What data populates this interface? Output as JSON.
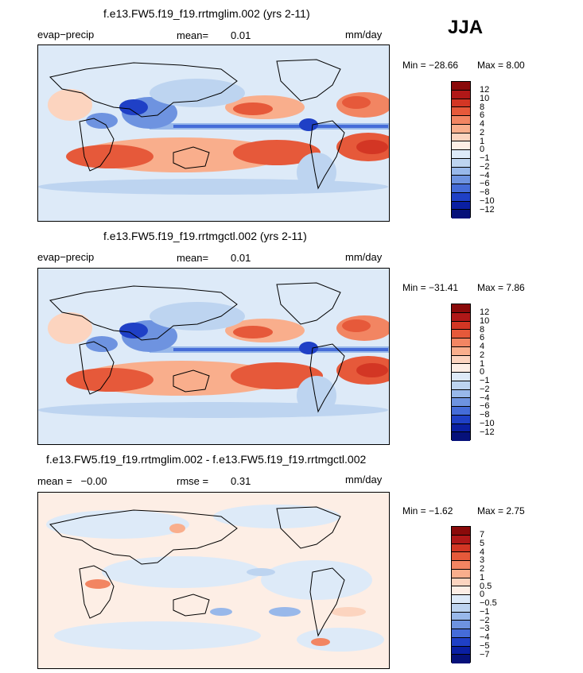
{
  "season": "JJA",
  "panels": [
    {
      "title": "f.e13.FW5.f19_f19.rrtmglim.002 (yrs 2-11)",
      "left": "evap−precip",
      "mid_label": "mean=",
      "mid_value": "0.01",
      "units": "mm/day",
      "minmax": {
        "min_label": "Min = ",
        "min": "−28.66",
        "max_label": "Max = ",
        "max": "8.00"
      },
      "colorbar": [
        "12",
        "10",
        "8",
        "6",
        "4",
        "2",
        "1",
        "0",
        "−1",
        "−2",
        "−4",
        "−6",
        "−8",
        "−10",
        "−12"
      ]
    },
    {
      "title": "f.e13.FW5.f19_f19.rrtmgctl.002 (yrs 2-11)",
      "left": "evap−precip",
      "mid_label": "mean=",
      "mid_value": "0.01",
      "units": "mm/day",
      "minmax": {
        "min_label": "Min = ",
        "min": "−31.41",
        "max_label": "Max = ",
        "max": "7.86"
      },
      "colorbar": [
        "12",
        "10",
        "8",
        "6",
        "4",
        "2",
        "1",
        "0",
        "−1",
        "−2",
        "−4",
        "−6",
        "−8",
        "−10",
        "−12"
      ]
    },
    {
      "title": "f.e13.FW5.f19_f19.rrtmglim.002 - f.e13.FW5.f19_f19.rrtmgctl.002",
      "left": "mean =   −0.00",
      "mid_label": "rmse =",
      "mid_value": "0.31",
      "units": "mm/day",
      "minmax": {
        "min_label": "Min = ",
        "min": "−1.62",
        "max_label": "Max = ",
        "max": "2.75"
      },
      "colorbar": [
        "7",
        "5",
        "4",
        "3",
        "2",
        "1",
        "0.5",
        "0",
        "−0.5",
        "−1",
        "−2",
        "−3",
        "−4",
        "−5",
        "−7"
      ]
    }
  ],
  "colors": {
    "scale": [
      "#8a0a0a",
      "#b01818",
      "#d33624",
      "#e6593a",
      "#f28562",
      "#f9ae8c",
      "#fcd4bf",
      "#fdeee5",
      "#ddeaf8",
      "#bdd4f0",
      "#98b8ea",
      "#6e93e0",
      "#456cd8",
      "#1f40c6",
      "#0a1fa2",
      "#06117a"
    ]
  }
}
